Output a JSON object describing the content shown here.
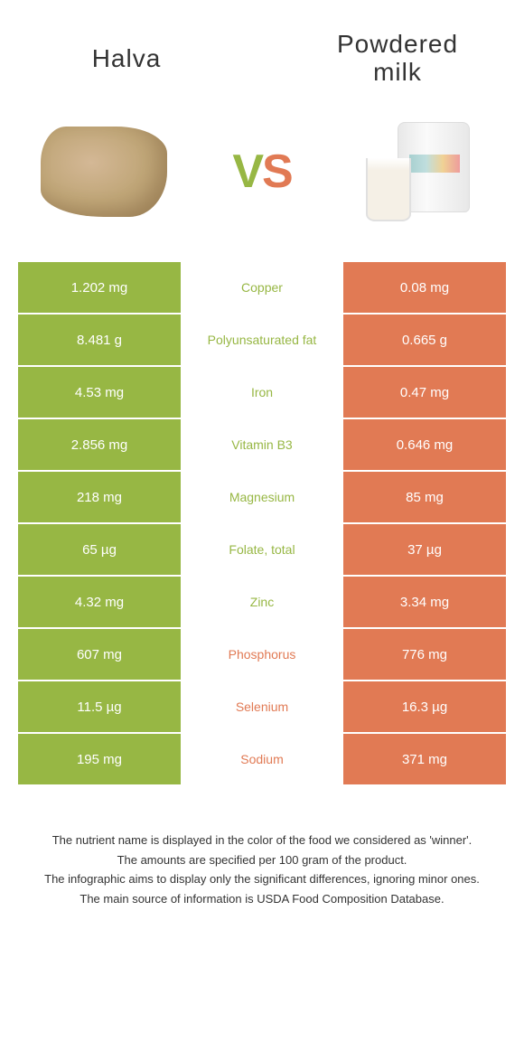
{
  "header": {
    "left_title": "Halva",
    "right_title_line1": "Powdered",
    "right_title_line2": "milk",
    "vs_v": "V",
    "vs_s": "S"
  },
  "colors": {
    "green": "#97b744",
    "orange": "#e17a54",
    "white": "#ffffff",
    "text": "#333333"
  },
  "table": {
    "left_color": "#97b744",
    "right_color": "#e17a54",
    "rows": [
      {
        "left": "1.202 mg",
        "label": "Copper",
        "right": "0.08 mg",
        "winner": "left"
      },
      {
        "left": "8.481 g",
        "label": "Polyunsaturated fat",
        "right": "0.665 g",
        "winner": "left"
      },
      {
        "left": "4.53 mg",
        "label": "Iron",
        "right": "0.47 mg",
        "winner": "left"
      },
      {
        "left": "2.856 mg",
        "label": "Vitamin B3",
        "right": "0.646 mg",
        "winner": "left"
      },
      {
        "left": "218 mg",
        "label": "Magnesium",
        "right": "85 mg",
        "winner": "left"
      },
      {
        "left": "65 µg",
        "label": "Folate, total",
        "right": "37 µg",
        "winner": "left"
      },
      {
        "left": "4.32 mg",
        "label": "Zinc",
        "right": "3.34 mg",
        "winner": "left"
      },
      {
        "left": "607 mg",
        "label": "Phosphorus",
        "right": "776 mg",
        "winner": "right"
      },
      {
        "left": "11.5 µg",
        "label": "Selenium",
        "right": "16.3 µg",
        "winner": "right"
      },
      {
        "left": "195 mg",
        "label": "Sodium",
        "right": "371 mg",
        "winner": "right"
      }
    ]
  },
  "footer": {
    "line1": "The nutrient name is displayed in the color of the food we considered as 'winner'.",
    "line2": "The amounts are specified per 100 gram of the product.",
    "line3": "The infographic aims to display only the significant differences, ignoring minor ones.",
    "line4": "The main source of information is USDA Food Composition Database."
  }
}
